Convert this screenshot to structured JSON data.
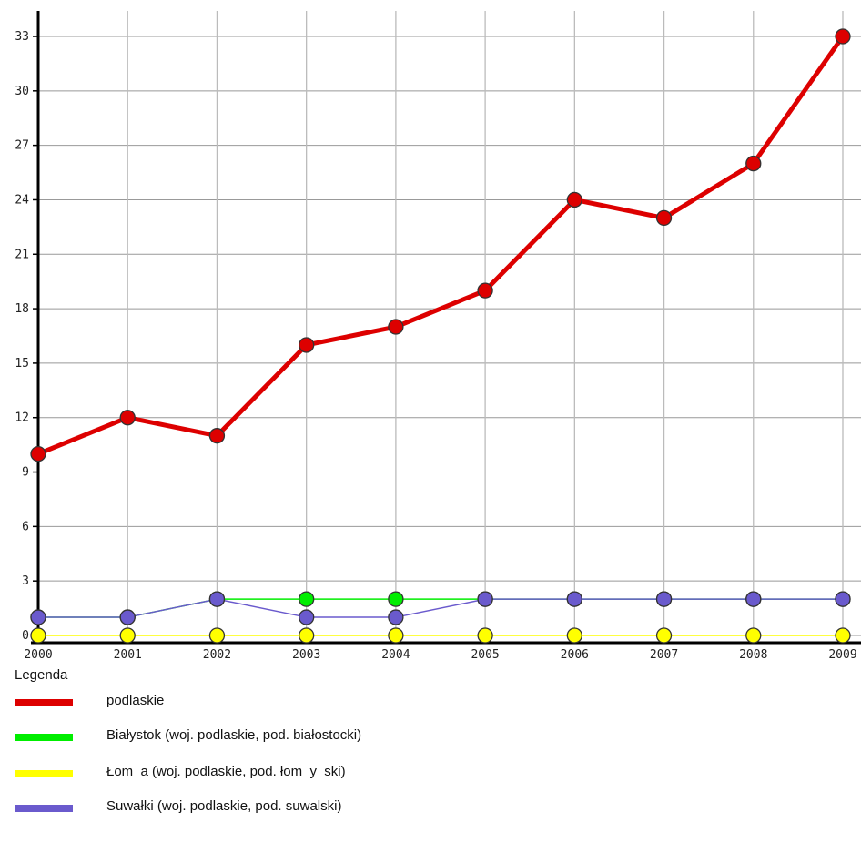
{
  "chart_data": {
    "type": "line",
    "title": "",
    "xlabel": "",
    "ylabel": "",
    "x": [
      "2000",
      "2001",
      "2002",
      "2003",
      "2004",
      "2005",
      "2006",
      "2007",
      "2008",
      "2009"
    ],
    "ylim": [
      0,
      33
    ],
    "yticks": [
      0,
      3,
      6,
      9,
      12,
      15,
      18,
      21,
      24,
      27,
      30,
      33
    ],
    "grid": true,
    "legend_placement": "bottom",
    "series": [
      {
        "name": "podlaskie",
        "color": "#dd0000",
        "values": [
          10,
          12,
          11,
          16,
          17,
          19,
          24,
          23,
          26,
          33
        ]
      },
      {
        "name": "Białystok (woj. podlaskie, pod. białostocki)",
        "color": "#00ee00",
        "values": [
          1,
          1,
          2,
          2,
          2,
          2,
          2,
          2,
          2,
          2
        ]
      },
      {
        "name": "Łom  a (woj. podlaskie, pod. łom  y  ski)",
        "color": "#ffff00",
        "values": [
          0,
          0,
          0,
          0,
          0,
          0,
          0,
          0,
          0,
          0
        ]
      },
      {
        "name": "Suwałki (woj. podlaskie, pod. suwalski)",
        "color": "#6a5acd",
        "values": [
          1,
          1,
          2,
          1,
          1,
          2,
          2,
          2,
          2,
          2
        ]
      }
    ]
  },
  "legend": {
    "title": "Legenda"
  }
}
